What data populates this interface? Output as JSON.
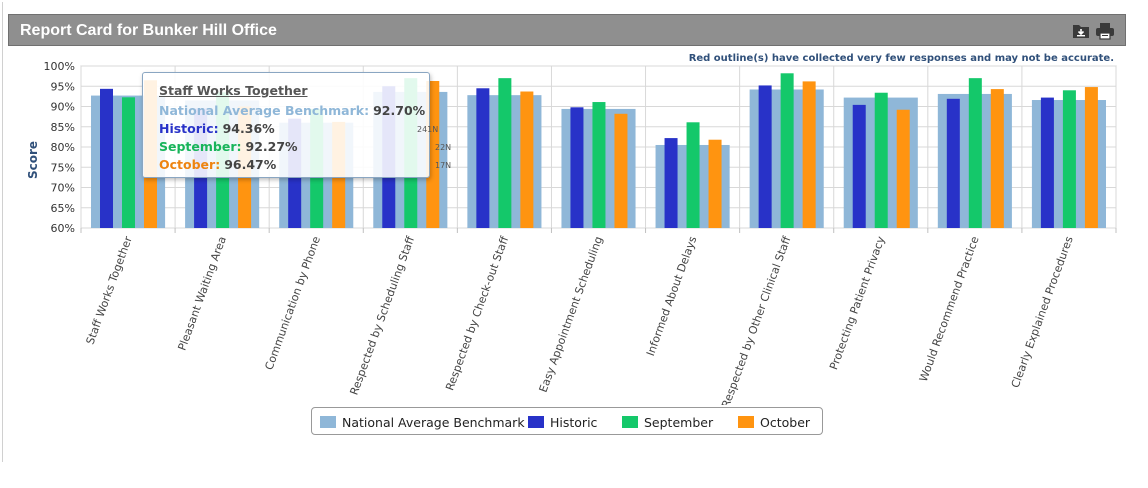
{
  "header": {
    "title": "Report Card for Bunker Hill Office",
    "download_icon": "download-icon",
    "print_icon": "printer-icon"
  },
  "notice": "Red outline(s) have collected very few responses and may not be accurate.",
  "tooltip": {
    "title": "Staff Works Together",
    "rows": [
      {
        "label": "National Average Benchmark:",
        "value": "92.70%",
        "n": "",
        "color": "#8fb7d8"
      },
      {
        "label": "Historic:",
        "value": "94.36%",
        "n": "241N",
        "color": "#2832c8"
      },
      {
        "label": "September:",
        "value": "92.27%",
        "n": "22N",
        "color": "#18b45a"
      },
      {
        "label": "October:",
        "value": "96.47%",
        "n": "17N",
        "color": "#ee8410"
      }
    ]
  },
  "legend": [
    {
      "label": "National Average Benchmark",
      "color": "#8fb7d8"
    },
    {
      "label": "Historic",
      "color": "#2832c8"
    },
    {
      "label": "September",
      "color": "#14c86a"
    },
    {
      "label": "October",
      "color": "#ff9410"
    }
  ],
  "chart_data": {
    "type": "bar",
    "ylabel": "Score",
    "ylim": [
      60,
      100
    ],
    "yticks": [
      "60%",
      "65%",
      "70%",
      "75%",
      "80%",
      "85%",
      "90%",
      "95%",
      "100%"
    ],
    "categories": [
      "Staff Works Together",
      "Pleasant Waiting Area",
      "Communication by Phone",
      "Respected by Scheduling Staff",
      "Respected by Check-out Staff",
      "Easy Appointment Scheduling",
      "Informed About Delays",
      "Respected by Other Clinical Staff",
      "Protecting Patient Privacy",
      "Would Recommend Practice",
      "Clearly Explained Procedures"
    ],
    "benchmark": {
      "name": "National Average Benchmark",
      "values": [
        92.7,
        91.5,
        86.0,
        93.6,
        92.8,
        89.4,
        80.5,
        94.2,
        92.2,
        93.1,
        91.6
      ]
    },
    "series": [
      {
        "name": "Historic",
        "values": [
          94.36,
          89.5,
          87.0,
          95.0,
          94.5,
          89.8,
          82.2,
          95.2,
          90.4,
          91.9,
          92.2
        ]
      },
      {
        "name": "September",
        "values": [
          92.27,
          93.5,
          89.4,
          97.0,
          97.0,
          91.1,
          86.1,
          98.2,
          93.4,
          97.0,
          94.0
        ]
      },
      {
        "name": "October",
        "values": [
          96.47,
          90.0,
          86.2,
          96.3,
          93.7,
          88.2,
          81.8,
          96.2,
          89.2,
          94.3,
          94.8
        ]
      }
    ],
    "grid": true,
    "legend_position": "bottom"
  }
}
